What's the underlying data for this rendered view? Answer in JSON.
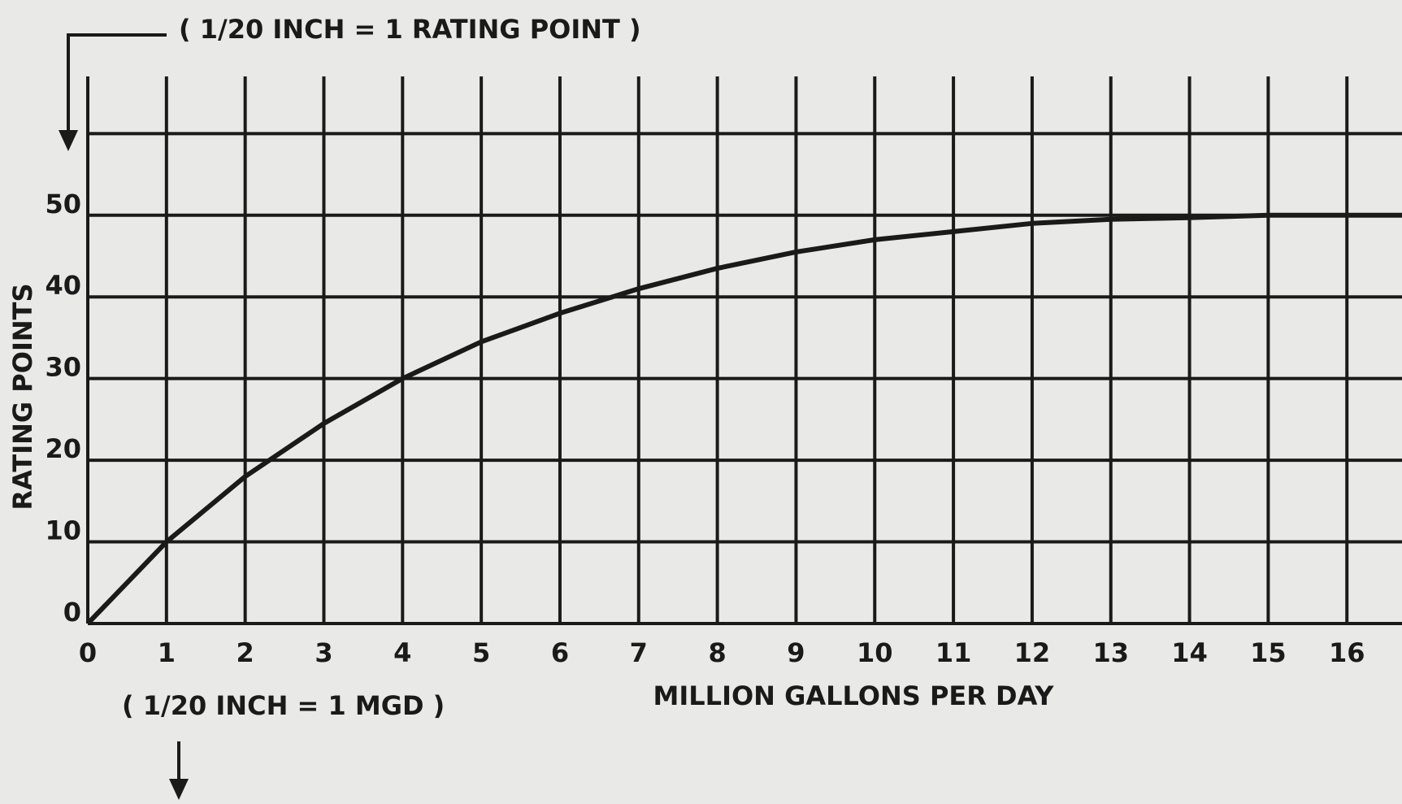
{
  "chart_data": {
    "type": "line",
    "annotations": [
      "( 1/20 INCH = 1 RATING POINT )",
      "( 1/20 INCH = 1 MGD )"
    ],
    "ylabel": "RATING POINTS",
    "xlabel": "MILLION GALLONS PER DAY",
    "x": [
      0,
      1,
      2,
      3,
      4,
      5,
      6,
      7,
      8,
      9,
      10,
      11,
      12,
      13,
      14,
      15,
      16,
      16.7
    ],
    "series": [
      {
        "color": "#1a1a1a",
        "values": [
          0,
          10,
          18,
          24.5,
          30,
          34.5,
          38,
          41,
          43.5,
          45.5,
          47,
          48,
          49,
          49.5,
          49.7,
          50,
          50,
          50
        ]
      }
    ],
    "xlim": [
      0,
      16.7
    ],
    "xticks": [
      0,
      1,
      2,
      3,
      4,
      5,
      6,
      7,
      8,
      9,
      10,
      11,
      12,
      13,
      14,
      15,
      16
    ],
    "ylim": [
      0,
      67
    ],
    "yticks": [
      0,
      10,
      20,
      30,
      40,
      50
    ],
    "ygrid": [
      0,
      10,
      20,
      30,
      40,
      50,
      60
    ],
    "grid": true
  }
}
